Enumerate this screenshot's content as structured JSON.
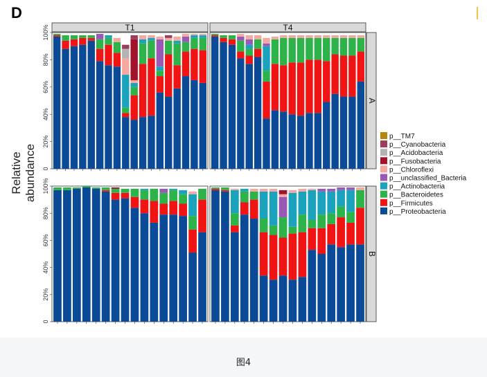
{
  "figure": {
    "panel_letter": "D",
    "caption": "图4",
    "y_axis_title": "Relative abundance"
  },
  "chart_data": {
    "type": "bar",
    "stacked": true,
    "ylabel": "Relative abundance",
    "xlabel": "",
    "ylim": [
      0,
      1
    ],
    "y_ticks": [
      "0",
      "20%",
      "40%",
      "60%",
      "80%",
      "100%"
    ],
    "facet_columns": [
      "T1",
      "T4"
    ],
    "facet_rows": [
      "A",
      "B"
    ],
    "legend_position": "right",
    "legend": [
      {
        "name": "p__TM7",
        "color": "#B8860B"
      },
      {
        "name": "p__Cyanobacteria",
        "color": "#9E3D5A"
      },
      {
        "name": "p__Acidobacteria",
        "color": "#B3B3B3"
      },
      {
        "name": "p__Fusobacteria",
        "color": "#A3122A"
      },
      {
        "name": "p__Chloroflexi",
        "color": "#F4A8A0"
      },
      {
        "name": "p__unclassified_Bacteria",
        "color": "#9B59B6"
      },
      {
        "name": "p__Actinobacteria",
        "color": "#1BA3BD"
      },
      {
        "name": "p__Bacteroidetes",
        "color": "#2DB34A"
      },
      {
        "name": "p__Firmicutes",
        "color": "#F01414"
      },
      {
        "name": "p__Proteobacteria",
        "color": "#0B4A96"
      }
    ],
    "stack_order": [
      "Proteobacteria",
      "Firmicutes",
      "Bacteroidetes",
      "Actinobacteria",
      "unclassified_Bacteria",
      "Chloroflexi",
      "Fusobacteria",
      "Acidobacteria",
      "Cyanobacteria",
      "TM7"
    ],
    "series_colors": {
      "Proteobacteria": "#0B4A96",
      "Firmicutes": "#F01414",
      "Bacteroidetes": "#2DB34A",
      "Actinobacteria": "#1BA3BD",
      "unclassified_Bacteria": "#9B59B6",
      "Chloroflexi": "#F4A8A0",
      "Fusobacteria": "#A3122A",
      "Acidobacteria": "#B3B3B3",
      "Cyanobacteria": "#9E3D5A",
      "TM7": "#B8860B"
    },
    "panels": [
      {
        "row": "A",
        "col": "T1",
        "samples": [
          {
            "Proteobacteria": 0.97,
            "Firmicutes": 0.01,
            "Bacteroidetes": 0.01
          },
          {
            "Proteobacteria": 0.88,
            "Firmicutes": 0.06,
            "Bacteroidetes": 0.04
          },
          {
            "Proteobacteria": 0.9,
            "Firmicutes": 0.05,
            "Bacteroidetes": 0.03
          },
          {
            "Proteobacteria": 0.91,
            "Firmicutes": 0.05,
            "Bacteroidetes": 0.02
          },
          {
            "Proteobacteria": 0.94,
            "Firmicutes": 0.02,
            "Bacteroidetes": 0.02
          },
          {
            "Proteobacteria": 0.79,
            "Firmicutes": 0.09,
            "Bacteroidetes": 0.07,
            "unclassified_Bacteria": 0.04
          },
          {
            "Proteobacteria": 0.76,
            "Firmicutes": 0.15,
            "Bacteroidetes": 0.05,
            "Actinobacteria": 0.02
          },
          {
            "Proteobacteria": 0.75,
            "Firmicutes": 0.1,
            "Bacteroidetes": 0.08,
            "Chloroflexi": 0.03
          },
          {
            "Proteobacteria": 0.38,
            "Firmicutes": 0.03,
            "Bacteroidetes": 0.04,
            "Actinobacteria": 0.24,
            "Chloroflexi": 0.12,
            "Acidobacteria": 0.07,
            "Cyanobacteria": 0.03
          },
          {
            "Proteobacteria": 0.36,
            "Firmicutes": 0.18,
            "Bacteroidetes": 0.06,
            "Actinobacteria": 0.03,
            "Chloroflexi": 0.02,
            "Fusobacteria": 0.3,
            "Cyanobacteria": 0.03
          },
          {
            "Proteobacteria": 0.38,
            "Firmicutes": 0.39,
            "Bacteroidetes": 0.15,
            "Actinobacteria": 0.03,
            "Chloroflexi": 0.03
          },
          {
            "Proteobacteria": 0.39,
            "Firmicutes": 0.42,
            "Bacteroidetes": 0.13,
            "Actinobacteria": 0.02,
            "Chloroflexi": 0.02
          },
          {
            "Proteobacteria": 0.56,
            "Firmicutes": 0.12,
            "Bacteroidetes": 0.04,
            "Actinobacteria": 0.03,
            "unclassified_Bacteria": 0.2,
            "Chloroflexi": 0.02
          },
          {
            "Proteobacteria": 0.53,
            "Firmicutes": 0.31,
            "Bacteroidetes": 0.1,
            "Chloroflexi": 0.02,
            "Cyanobacteria": 0.02
          },
          {
            "Proteobacteria": 0.59,
            "Firmicutes": 0.17,
            "Bacteroidetes": 0.16,
            "Actinobacteria": 0.02,
            "Chloroflexi": 0.03
          },
          {
            "Proteobacteria": 0.68,
            "Firmicutes": 0.18,
            "Bacteroidetes": 0.07,
            "unclassified_Bacteria": 0.04,
            "Chloroflexi": 0.02
          },
          {
            "Proteobacteria": 0.65,
            "Firmicutes": 0.23,
            "Bacteroidetes": 0.08,
            "Actinobacteria": 0.02,
            "Chloroflexi": 0.01
          },
          {
            "Proteobacteria": 0.63,
            "Firmicutes": 0.24,
            "Bacteroidetes": 0.09,
            "Actinobacteria": 0.02,
            "Chloroflexi": 0.01
          }
        ]
      },
      {
        "row": "A",
        "col": "T4",
        "samples": [
          {
            "Proteobacteria": 0.97,
            "Firmicutes": 0.01,
            "Bacteroidetes": 0.01
          },
          {
            "Proteobacteria": 0.93,
            "Firmicutes": 0.03,
            "Bacteroidetes": 0.02
          },
          {
            "Proteobacteria": 0.91,
            "Firmicutes": 0.04,
            "Bacteroidetes": 0.03
          },
          {
            "Proteobacteria": 0.81,
            "Firmicutes": 0.05,
            "Bacteroidetes": 0.08,
            "unclassified_Bacteria": 0.03,
            "Chloroflexi": 0.02
          },
          {
            "Proteobacteria": 0.77,
            "Firmicutes": 0.06,
            "Bacteroidetes": 0.05,
            "Actinobacteria": 0.03,
            "unclassified_Bacteria": 0.04,
            "Chloroflexi": 0.03
          },
          {
            "Proteobacteria": 0.82,
            "Firmicutes": 0.06,
            "Bacteroidetes": 0.07,
            "Chloroflexi": 0.03
          },
          {
            "Proteobacteria": 0.37,
            "Firmicutes": 0.27,
            "Bacteroidetes": 0.08,
            "Actinobacteria": 0.18,
            "Chloroflexi": 0.04,
            "unclassified_Bacteria": 0.02
          },
          {
            "Proteobacteria": 0.43,
            "Firmicutes": 0.34,
            "Bacteroidetes": 0.18,
            "Chloroflexi": 0.02
          },
          {
            "Proteobacteria": 0.42,
            "Firmicutes": 0.34,
            "Bacteroidetes": 0.2,
            "Chloroflexi": 0.02
          },
          {
            "Proteobacteria": 0.4,
            "Firmicutes": 0.38,
            "Bacteroidetes": 0.18,
            "Chloroflexi": 0.02
          },
          {
            "Proteobacteria": 0.39,
            "Firmicutes": 0.39,
            "Bacteroidetes": 0.18,
            "Chloroflexi": 0.02
          },
          {
            "Proteobacteria": 0.41,
            "Firmicutes": 0.39,
            "Bacteroidetes": 0.16,
            "Chloroflexi": 0.02
          },
          {
            "Proteobacteria": 0.41,
            "Firmicutes": 0.39,
            "Bacteroidetes": 0.16,
            "Chloroflexi": 0.02
          },
          {
            "Proteobacteria": 0.49,
            "Firmicutes": 0.3,
            "Bacteroidetes": 0.17,
            "Chloroflexi": 0.02
          },
          {
            "Proteobacteria": 0.55,
            "Firmicutes": 0.29,
            "Bacteroidetes": 0.12,
            "Chloroflexi": 0.02
          },
          {
            "Proteobacteria": 0.53,
            "Firmicutes": 0.3,
            "Bacteroidetes": 0.13,
            "Chloroflexi": 0.02
          },
          {
            "Proteobacteria": 0.53,
            "Firmicutes": 0.3,
            "Bacteroidetes": 0.13,
            "Chloroflexi": 0.02
          },
          {
            "Proteobacteria": 0.64,
            "Firmicutes": 0.22,
            "Bacteroidetes": 0.1,
            "Chloroflexi": 0.02
          }
        ]
      },
      {
        "row": "B",
        "col": "T1",
        "samples": [
          {
            "Proteobacteria": 0.97,
            "Bacteroidetes": 0.02
          },
          {
            "Proteobacteria": 0.97,
            "Bacteroidetes": 0.02
          },
          {
            "Proteobacteria": 0.98,
            "Bacteroidetes": 0.01
          },
          {
            "Proteobacteria": 0.99,
            "Bacteroidetes": 0.01
          },
          {
            "Proteobacteria": 0.98,
            "Bacteroidetes": 0.01
          },
          {
            "Proteobacteria": 0.96,
            "Firmicutes": 0.01,
            "Bacteroidetes": 0.02
          },
          {
            "Proteobacteria": 0.9,
            "Firmicutes": 0.05,
            "Bacteroidetes": 0.03,
            "Fusobacteria": 0.01
          },
          {
            "Proteobacteria": 0.91,
            "Firmicutes": 0.04,
            "Bacteroidetes": 0.03
          },
          {
            "Proteobacteria": 0.84,
            "Firmicutes": 0.08,
            "Bacteroidetes": 0.06
          },
          {
            "Proteobacteria": 0.8,
            "Firmicutes": 0.1,
            "Bacteroidetes": 0.07,
            "Actinobacteria": 0.01
          },
          {
            "Proteobacteria": 0.73,
            "Firmicutes": 0.16,
            "Bacteroidetes": 0.09
          },
          {
            "Proteobacteria": 0.79,
            "Firmicutes": 0.08,
            "Bacteroidetes": 0.08,
            "unclassified_Bacteria": 0.03
          },
          {
            "Proteobacteria": 0.79,
            "Firmicutes": 0.1,
            "Bacteroidetes": 0.08,
            "Actinobacteria": 0.01
          },
          {
            "Proteobacteria": 0.78,
            "Firmicutes": 0.09,
            "Bacteroidetes": 0.07,
            "Actinobacteria": 0.03
          },
          {
            "Proteobacteria": 0.51,
            "Firmicutes": 0.17,
            "Bacteroidetes": 0.1,
            "Actinobacteria": 0.16,
            "Chloroflexi": 0.02
          },
          {
            "Proteobacteria": 0.66,
            "Firmicutes": 0.24,
            "Bacteroidetes": 0.08
          }
        ]
      },
      {
        "row": "B",
        "col": "T4",
        "samples": [
          {
            "Proteobacteria": 0.97,
            "Firmicutes": 0.01,
            "Bacteroidetes": 0.01
          },
          {
            "Proteobacteria": 0.96,
            "Firmicutes": 0.01,
            "Bacteroidetes": 0.02
          },
          {
            "Proteobacteria": 0.66,
            "Firmicutes": 0.05,
            "Bacteroidetes": 0.09,
            "Actinobacteria": 0.17,
            "Chloroflexi": 0.01
          },
          {
            "Proteobacteria": 0.79,
            "Firmicutes": 0.09,
            "Bacteroidetes": 0.08,
            "Actinobacteria": 0.02
          },
          {
            "Proteobacteria": 0.76,
            "Firmicutes": 0.14,
            "Bacteroidetes": 0.06,
            "Chloroflexi": 0.02
          },
          {
            "Proteobacteria": 0.34,
            "Firmicutes": 0.32,
            "Bacteroidetes": 0.1,
            "Actinobacteria": 0.2,
            "Chloroflexi": 0.02
          },
          {
            "Proteobacteria": 0.31,
            "Firmicutes": 0.33,
            "Bacteroidetes": 0.07,
            "Actinobacteria": 0.25,
            "Chloroflexi": 0.02
          },
          {
            "Proteobacteria": 0.34,
            "Firmicutes": 0.28,
            "Bacteroidetes": 0.15,
            "unclassified_Bacteria": 0.15,
            "Fusobacteria": 0.03,
            "Chloroflexi": 0.02
          },
          {
            "Proteobacteria": 0.31,
            "Firmicutes": 0.34,
            "Bacteroidetes": 0.05,
            "Actinobacteria": 0.25,
            "Chloroflexi": 0.02
          },
          {
            "Proteobacteria": 0.33,
            "Firmicutes": 0.33,
            "Bacteroidetes": 0.13,
            "Actinobacteria": 0.17,
            "Chloroflexi": 0.02
          },
          {
            "Proteobacteria": 0.53,
            "Firmicutes": 0.16,
            "Bacteroidetes": 0.06,
            "Actinobacteria": 0.22,
            "Chloroflexi": 0.01
          },
          {
            "Proteobacteria": 0.5,
            "Firmicutes": 0.19,
            "Bacteroidetes": 0.1,
            "Actinobacteria": 0.17,
            "unclassified_Bacteria": 0.02
          },
          {
            "Proteobacteria": 0.57,
            "Firmicutes": 0.15,
            "Bacteroidetes": 0.08,
            "Actinobacteria": 0.16,
            "unclassified_Bacteria": 0.02
          },
          {
            "Proteobacteria": 0.55,
            "Firmicutes": 0.22,
            "Bacteroidetes": 0.08,
            "Actinobacteria": 0.12,
            "unclassified_Bacteria": 0.02
          },
          {
            "Proteobacteria": 0.57,
            "Firmicutes": 0.16,
            "Bacteroidetes": 0.08,
            "Actinobacteria": 0.16,
            "unclassified_Bacteria": 0.02
          },
          {
            "Proteobacteria": 0.57,
            "Firmicutes": 0.27,
            "Bacteroidetes": 0.13,
            "Chloroflexi": 0.02
          }
        ]
      }
    ]
  }
}
